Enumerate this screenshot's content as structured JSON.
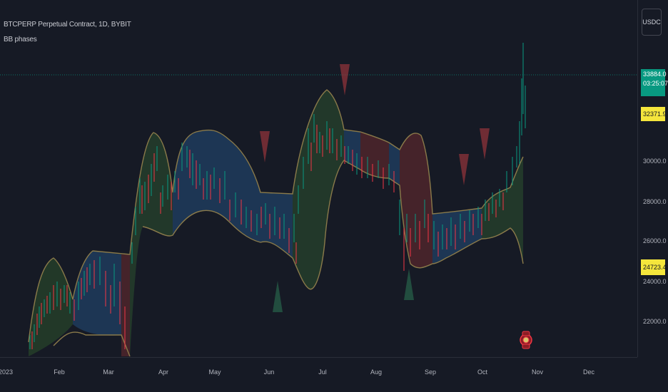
{
  "legend": {
    "title": "BTCPERP Perpetual Contract, 1D, BYBIT",
    "indicator": "BB phases"
  },
  "currency_button": "USDC",
  "price_scale": {
    "ticks": [
      "30000.0",
      "28000.0",
      "26000.0",
      "24000.0",
      "22000.0"
    ],
    "last_price": "33884.0",
    "countdown": "03:25:07",
    "upper_band": "32371.9",
    "lower_band": "24723.4"
  },
  "time_scale": {
    "ticks": [
      "2023",
      "Feb",
      "Mar",
      "Apr",
      "May",
      "Jun",
      "Jul",
      "Aug",
      "Sep",
      "Oct",
      "Nov",
      "Dec"
    ]
  },
  "colors": {
    "background": "#161a25",
    "up_candle": "#089981",
    "down_candle": "#f23645",
    "band_line": "#8a7a4a",
    "phase_blue": "#1e3a5f",
    "phase_green": "#243c2a",
    "phase_red": "#4a2228",
    "badge_yellow": "#f5e63c"
  },
  "icons": {
    "alert_marker": "dividend-marker-icon"
  }
}
